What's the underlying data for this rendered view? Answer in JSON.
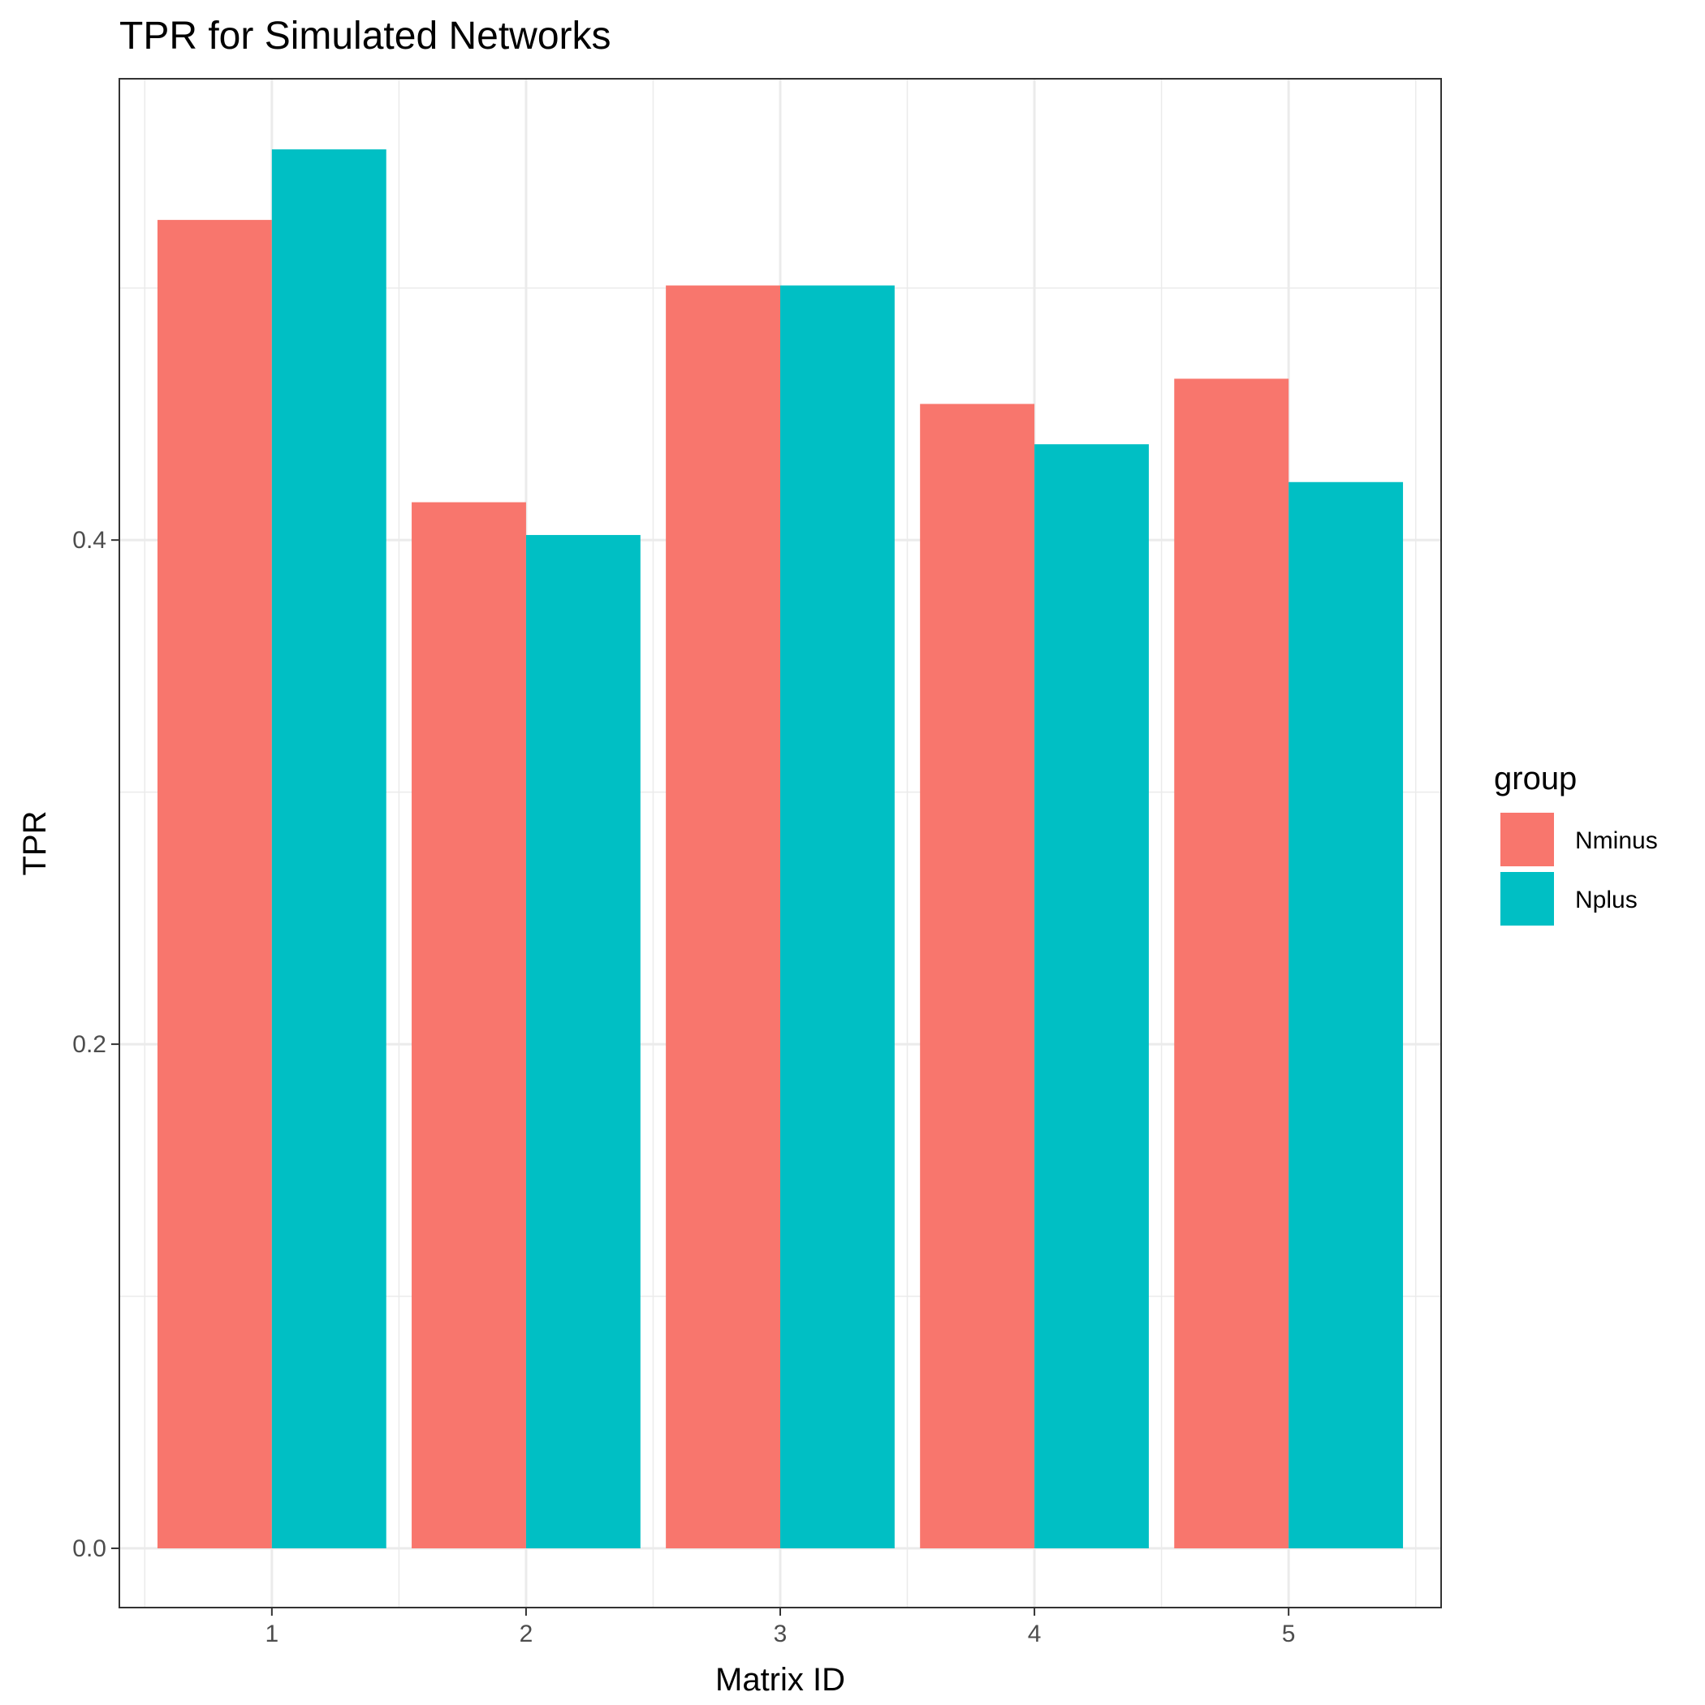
{
  "chart_data": {
    "type": "bar",
    "title": "TPR for Simulated Networks",
    "xlabel": "Matrix ID",
    "ylabel": "TPR",
    "categories": [
      "1",
      "2",
      "3",
      "4",
      "5"
    ],
    "series": [
      {
        "name": "Nminus",
        "color": "#F8766D",
        "values": [
          0.527,
          0.415,
          0.501,
          0.454,
          0.464
        ]
      },
      {
        "name": "Nplus",
        "color": "#00BFC4",
        "values": [
          0.555,
          0.402,
          0.501,
          0.438,
          0.423
        ]
      }
    ],
    "ylim": [
      -0.0235,
      0.583
    ],
    "yticks": [
      0.0,
      0.2,
      0.4
    ],
    "ytick_labels": [
      "0.0",
      "0.2",
      "0.4"
    ],
    "grid": true,
    "legend": {
      "title": "group",
      "placement": "right"
    }
  }
}
